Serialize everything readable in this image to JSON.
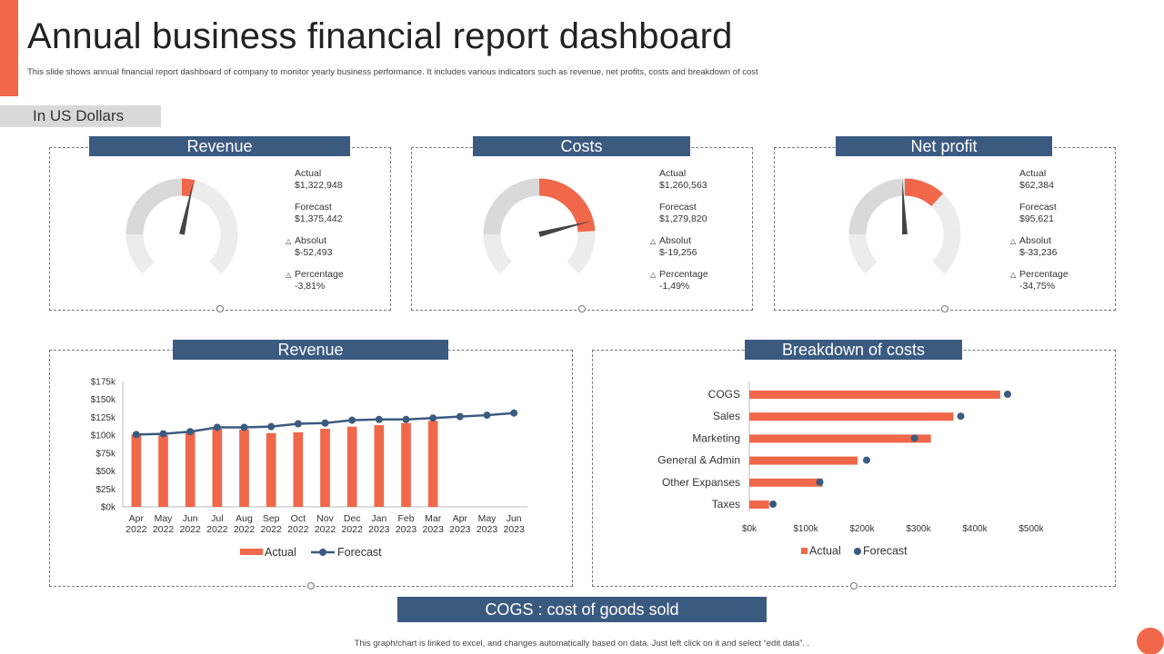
{
  "header": {
    "title": "Annual business financial report dashboard",
    "subtitle": "This slide shows annual financial report dashboard of company to monitor yearly business performance. It includes various indicators such as revenue, net profits, costs and breakdown of cost",
    "unit": "In US Dollars"
  },
  "colors": {
    "accent": "#f0674a",
    "header": "#3b5a80",
    "gauge_track": "#ececec",
    "gauge_mid": "#d9d9d9",
    "needle": "#444444"
  },
  "gauges": [
    {
      "title": "Revenue",
      "fill_fraction": 0.55,
      "needle_fraction": 0.545,
      "actual_label": "Actual",
      "actual": "$1,322,948",
      "forecast_label": "Forecast",
      "forecast": "$1,375,442",
      "absolut_label": "Absolut",
      "absolut": "$-52,493",
      "percentage_label": "Percentage",
      "percentage": "-3,81%"
    },
    {
      "title": "Costs",
      "fill_fraction": 0.82,
      "needle_fraction": 0.78,
      "actual_label": "Actual",
      "actual": "$1,260,563",
      "forecast_label": "Forecast",
      "forecast": "$1,279,820",
      "absolut_label": "Absolut",
      "absolut": "$-19,256",
      "percentage_label": "Percentage",
      "percentage": "-1,49%"
    },
    {
      "title": "Net profit",
      "fill_fraction": 0.66,
      "needle_fraction": 0.49,
      "actual_label": "Actual",
      "actual": "$62,384",
      "forecast_label": "Forecast",
      "forecast": "$95,621",
      "absolut_label": "Absolut",
      "absolut": "$-33,236",
      "percentage_label": "Percentage",
      "percentage": "-34,75%"
    }
  ],
  "revenue_panel": {
    "title": "Revenue"
  },
  "breakdown_panel": {
    "title": "Breakdown of costs"
  },
  "chart_data": [
    {
      "type": "bar",
      "title": "Revenue",
      "categories": [
        "Apr 2022",
        "May 2022",
        "Jun 2022",
        "Jul 2022",
        "Aug 2022",
        "Sep 2022",
        "Oct 2022",
        "Nov 2022",
        "Dec 2022",
        "Jan 2023",
        "Feb 2023",
        "Mar 2023",
        "Apr 2023",
        "May 2023",
        "Jun 2023"
      ],
      "series": [
        {
          "name": "Actual",
          "type": "bar",
          "values": [
            101000,
            100000,
            104000,
            109000,
            108000,
            103000,
            104000,
            109000,
            112000,
            114000,
            117000,
            120000,
            null,
            null,
            null
          ]
        },
        {
          "name": "Forecast",
          "type": "line",
          "values": [
            101000,
            102000,
            105000,
            111000,
            111000,
            112000,
            116000,
            117000,
            121000,
            122000,
            122000,
            124000,
            126000,
            128000,
            131000
          ]
        }
      ],
      "yticks": [
        "$0k",
        "$25k",
        "$50k",
        "$75k",
        "$100k",
        "$125k",
        "$150k",
        "$175k"
      ],
      "ylim": [
        0,
        175000
      ],
      "legend": "bottom",
      "grid": false
    },
    {
      "type": "bar",
      "orientation": "horizontal",
      "title": "Breakdown of costs",
      "categories": [
        "COGS",
        "Sales",
        "Marketing",
        "General & Admin",
        "Other Expanses",
        "Taxes"
      ],
      "series": [
        {
          "name": "Actual",
          "type": "bar",
          "values": [
            445000,
            362000,
            322000,
            192000,
            130000,
            35000
          ]
        },
        {
          "name": "Forecast",
          "type": "dot",
          "values": [
            458000,
            375000,
            293000,
            208000,
            125000,
            42000
          ]
        }
      ],
      "xticks": [
        "$0k",
        "$100k",
        "$200k",
        "$300k",
        "$400k",
        "$500k"
      ],
      "xlim": [
        0,
        500000
      ],
      "legend": "bottom",
      "grid": false
    }
  ],
  "note": "COGS : cost of goods sold",
  "footer": "This graph/chart is linked to excel, and changes automatically based on data. Just left click on it and select “edit data”. ."
}
